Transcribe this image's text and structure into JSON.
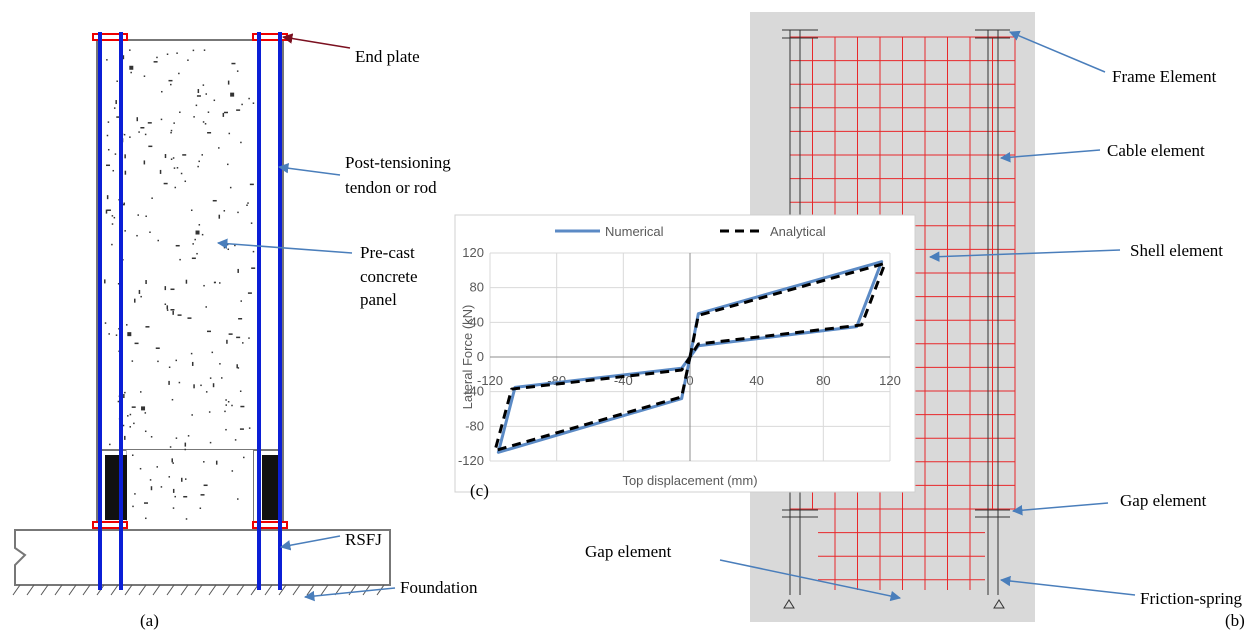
{
  "panel_a": {
    "end_plate": "End plate",
    "tendon": [
      "Post-tensioning",
      "tendon or rod"
    ],
    "panel": [
      "Pre-cast",
      "concrete",
      "panel"
    ],
    "rsfj": "RSFJ",
    "foundation": "Foundation",
    "label": "(a)"
  },
  "panel_b": {
    "frame": "Frame Element",
    "cable": "Cable element",
    "shell": "Shell element",
    "gap_right": "Gap element",
    "gap_bottom": "Gap element",
    "friction": "Friction-spring",
    "label": "(b)"
  },
  "panel_c_label": "(c)",
  "chart_data": {
    "type": "line",
    "x_label": "Top displacement (mm)",
    "y_label": "Lateral Force (kN)",
    "legend": "top",
    "grid": true,
    "xlim": [
      -120,
      120
    ],
    "xticks": [
      -120,
      -80,
      -40,
      0,
      40,
      80,
      120
    ],
    "ylim": [
      -120,
      120
    ],
    "yticks": [
      -120,
      -80,
      -40,
      0,
      40,
      80,
      120
    ],
    "series": [
      {
        "name": "Numerical",
        "color": "#5b8ac5",
        "linestyle": "solid",
        "x": [
          0,
          5,
          115,
          100,
          5,
          0,
          -5,
          -105,
          -115,
          -5,
          0
        ],
        "values": [
          0,
          50,
          110,
          35,
          13,
          0,
          -13,
          -35,
          -110,
          -48,
          0
        ]
      },
      {
        "name": "Analytical",
        "color": "#000000",
        "linestyle": "dashed",
        "x": [
          0,
          5,
          117,
          103,
          5,
          0,
          -5,
          -107,
          -117,
          -5,
          0
        ],
        "values": [
          0,
          48,
          108,
          37,
          15,
          0,
          -15,
          -37,
          -108,
          -46,
          0
        ]
      }
    ]
  }
}
